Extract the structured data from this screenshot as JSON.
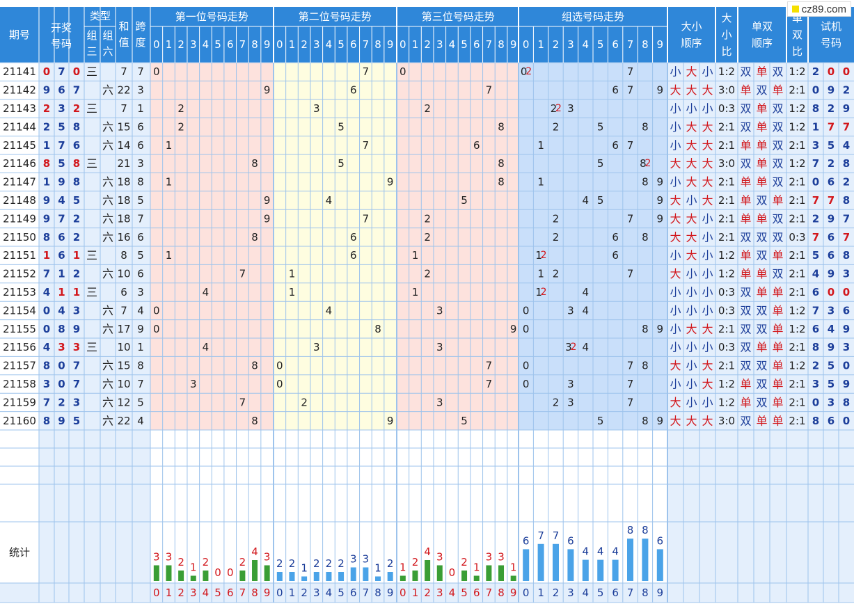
{
  "watermark": "cz89.com",
  "headers": {
    "period": "期号",
    "draw": "开奖号码",
    "type": "类型",
    "type_z3": "组三",
    "type_z6": "组六",
    "sum": "和值",
    "span": "跨度",
    "pos1": "第一位号码走势",
    "pos2": "第二位号码走势",
    "pos3": "第三位号码走势",
    "group": "组选号码走势",
    "bs_order": "大小顺序",
    "bs_ratio": "大小比",
    "oe_order": "单双顺序",
    "oe_ratio": "单双比",
    "trial": "试机号码"
  },
  "labels": {
    "z3": "三",
    "z6": "六",
    "big": "大",
    "small": "小",
    "odd": "单",
    "even": "双",
    "stats": "统计"
  },
  "digits": [
    "0",
    "1",
    "2",
    "3",
    "4",
    "5",
    "6",
    "7",
    "8",
    "9"
  ],
  "colors": {
    "header_bg": "#2f87d9",
    "pos_pink": "#fde2dd",
    "pos_yellow": "#fefde0",
    "group_blue": "#c9dffa",
    "left_blue": "#e4effc",
    "grid": "#9dc3ec",
    "num_blue": "#1c3e9a",
    "num_red": "#d2171c",
    "green_bar": "#3a9e35",
    "blue_bar": "#4aa3e8"
  },
  "chart_data": {
    "type": "table",
    "rows": [
      {
        "period": "21141",
        "draw": [
          0,
          7,
          0
        ],
        "trial": [
          2,
          0,
          0
        ]
      },
      {
        "period": "21142",
        "draw": [
          9,
          6,
          7
        ],
        "trial": [
          0,
          9,
          2
        ]
      },
      {
        "period": "21143",
        "draw": [
          2,
          3,
          2
        ],
        "trial": [
          8,
          2,
          9
        ]
      },
      {
        "period": "21144",
        "draw": [
          2,
          5,
          8
        ],
        "trial": [
          1,
          7,
          7
        ]
      },
      {
        "period": "21145",
        "draw": [
          1,
          7,
          6
        ],
        "trial": [
          3,
          5,
          4
        ]
      },
      {
        "period": "21146",
        "draw": [
          8,
          5,
          8
        ],
        "trial": [
          7,
          2,
          8
        ]
      },
      {
        "period": "21147",
        "draw": [
          1,
          9,
          8
        ],
        "trial": [
          0,
          6,
          2
        ]
      },
      {
        "period": "21148",
        "draw": [
          9,
          4,
          5
        ],
        "trial": [
          7,
          7,
          8
        ]
      },
      {
        "period": "21149",
        "draw": [
          9,
          7,
          2
        ],
        "trial": [
          2,
          9,
          7
        ]
      },
      {
        "period": "21150",
        "draw": [
          8,
          6,
          2
        ],
        "trial": [
          7,
          6,
          7
        ]
      },
      {
        "period": "21151",
        "draw": [
          1,
          6,
          1
        ],
        "trial": [
          5,
          6,
          8
        ]
      },
      {
        "period": "21152",
        "draw": [
          7,
          1,
          2
        ],
        "trial": [
          4,
          9,
          3
        ]
      },
      {
        "period": "21153",
        "draw": [
          4,
          1,
          1
        ],
        "trial": [
          6,
          0,
          0
        ]
      },
      {
        "period": "21154",
        "draw": [
          0,
          4,
          3
        ],
        "trial": [
          7,
          3,
          6
        ]
      },
      {
        "period": "21155",
        "draw": [
          0,
          8,
          9
        ],
        "trial": [
          6,
          4,
          9
        ]
      },
      {
        "period": "21156",
        "draw": [
          4,
          3,
          3
        ],
        "trial": [
          8,
          9,
          3
        ]
      },
      {
        "period": "21157",
        "draw": [
          8,
          0,
          7
        ],
        "trial": [
          2,
          5,
          0
        ]
      },
      {
        "period": "21158",
        "draw": [
          3,
          0,
          7
        ],
        "trial": [
          3,
          5,
          9
        ]
      },
      {
        "period": "21159",
        "draw": [
          7,
          2,
          3
        ],
        "trial": [
          0,
          3,
          8
        ]
      },
      {
        "period": "21160",
        "draw": [
          8,
          9,
          5
        ],
        "trial": [
          8,
          6,
          0
        ]
      }
    ],
    "stats": {
      "pos1": [
        3,
        3,
        2,
        1,
        2,
        0,
        0,
        2,
        4,
        3
      ],
      "pos2": [
        2,
        2,
        1,
        2,
        2,
        2,
        3,
        3,
        1,
        2
      ],
      "pos3": [
        1,
        2,
        4,
        3,
        0,
        2,
        1,
        3,
        3,
        1
      ],
      "group": [
        6,
        7,
        7,
        6,
        4,
        4,
        4,
        8,
        8,
        6
      ]
    }
  }
}
